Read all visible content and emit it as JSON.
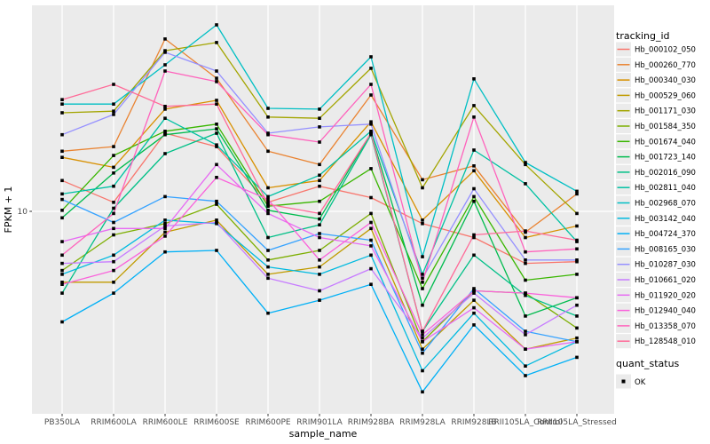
{
  "figure": {
    "background": "#FFFFFF",
    "panel_background": "#EBEBEB",
    "grid_color": "#FFFFFF",
    "marker_color": "#000000"
  },
  "axes": {
    "x_title": "sample_name",
    "y_title": "FPKM + 1",
    "y_tick_labels": [
      "10"
    ]
  },
  "legend": {
    "tracking_title": "tracking_id",
    "quant_title": "quant_status",
    "quant_items": [
      {
        "label": "OK",
        "marker": "black-square"
      }
    ]
  },
  "chart_data": {
    "type": "line",
    "title": "",
    "xlabel": "sample_name",
    "ylabel": "FPKM + 1",
    "y_scale": "log10",
    "ylim": [
      1.5,
      70
    ],
    "grid": "white-on-gray, vertical per category, horizontal at 10",
    "legend_position": "right",
    "point_marker": {
      "shape": "square",
      "color": "#000000",
      "legend": "quant_status = OK"
    },
    "categories": [
      "PB350LA",
      "RRIM600LA",
      "RRIM600LE",
      "RRIM600SE",
      "RRIM600PE",
      "RRIM901LA",
      "RRIM928BA",
      "RRIM928LA",
      "RRIM928LB",
      "RRII105LA_Control",
      "RRII105LA_Stressed"
    ],
    "series": [
      {
        "name": "Hb_000102_050",
        "color": "#F8766D",
        "values": [
          13.4,
          10.9,
          21.0,
          18.5,
          10.9,
          12.7,
          11.4,
          8.9,
          7.8,
          6.1,
          6.2
        ]
      },
      {
        "name": "Hb_000260_770",
        "color": "#EA8331",
        "values": [
          17.7,
          18.5,
          51.4,
          35.4,
          17.7,
          15.6,
          30.2,
          13.5,
          15.4,
          8.2,
          11.8
        ]
      },
      {
        "name": "Hb_000340_030",
        "color": "#D89000",
        "values": [
          16.7,
          15.2,
          26.4,
          28.7,
          12.5,
          13.4,
          23.4,
          9.2,
          14.7,
          7.8,
          8.7
        ]
      },
      {
        "name": "Hb_000529_060",
        "color": "#C09B00",
        "values": [
          5.1,
          5.1,
          8.2,
          9.2,
          5.5,
          5.9,
          8.5,
          2.7,
          4.3,
          2.7,
          3.0
        ]
      },
      {
        "name": "Hb_001171_030",
        "color": "#A3A500",
        "values": [
          25.5,
          25.9,
          46.0,
          49.7,
          24.5,
          24.2,
          38.9,
          12.5,
          27.3,
          15.6,
          9.8
        ]
      },
      {
        "name": "Hb_001584_350",
        "color": "#7CAE00",
        "values": [
          5.7,
          8.0,
          8.9,
          10.7,
          6.3,
          6.9,
          9.8,
          2.9,
          4.7,
          4.6,
          3.3
        ]
      },
      {
        "name": "Hb_001674_040",
        "color": "#39B600",
        "values": [
          10.1,
          17.0,
          21.4,
          22.9,
          10.5,
          11.0,
          15.0,
          4.8,
          11.5,
          5.2,
          5.5
        ]
      },
      {
        "name": "Hb_001723_140",
        "color": "#00BB4E",
        "values": [
          9.4,
          14.4,
          20.7,
          21.9,
          10.1,
          9.3,
          21.0,
          4.1,
          11.0,
          3.7,
          4.4
        ]
      },
      {
        "name": "Hb_002016_090",
        "color": "#00C087",
        "values": [
          4.6,
          10.3,
          17.3,
          21.0,
          7.8,
          8.8,
          20.7,
          3.2,
          6.6,
          4.5,
          3.7
        ]
      },
      {
        "name": "Hb_002811_040",
        "color": "#00C1A3",
        "values": [
          11.8,
          12.7,
          24.2,
          18.8,
          11.5,
          14.1,
          21.4,
          5.5,
          17.9,
          13.0,
          7.5
        ]
      },
      {
        "name": "Hb_002968_070",
        "color": "#00BFC4",
        "values": [
          27.7,
          27.7,
          40.2,
          58.8,
          26.6,
          26.4,
          43.4,
          6.5,
          35.2,
          15.9,
          12.1
        ]
      },
      {
        "name": "Hb_003142_040",
        "color": "#00BAE0",
        "values": [
          5.5,
          6.6,
          9.2,
          8.9,
          5.9,
          5.5,
          6.6,
          2.2,
          3.8,
          2.3,
          2.9
        ]
      },
      {
        "name": "Hb_004724_370",
        "color": "#00B0F6",
        "values": [
          3.5,
          4.6,
          6.8,
          6.9,
          3.8,
          4.3,
          5.0,
          1.8,
          3.4,
          2.1,
          2.5
        ]
      },
      {
        "name": "Hb_008165_030",
        "color": "#35A2FF",
        "values": [
          11.2,
          9.0,
          11.5,
          11.0,
          6.9,
          8.1,
          7.6,
          2.6,
          4.8,
          3.2,
          2.9
        ]
      },
      {
        "name": "Hb_010287_030",
        "color": "#9590FF",
        "values": [
          20.7,
          25.1,
          45.3,
          37.9,
          21.0,
          22.3,
          22.9,
          5.3,
          12.4,
          6.3,
          6.3
        ]
      },
      {
        "name": "Hb_010661_020",
        "color": "#C77CFF",
        "values": [
          6.1,
          6.2,
          8.7,
          9.0,
          5.3,
          4.7,
          5.8,
          3.0,
          4.6,
          3.1,
          4.1
        ]
      },
      {
        "name": "Hb_011920_020",
        "color": "#E76BF3",
        "values": [
          7.5,
          8.5,
          8.5,
          15.6,
          9.8,
          7.8,
          7.2,
          2.9,
          4.0,
          2.7,
          2.9
        ]
      },
      {
        "name": "Hb_012940_040",
        "color": "#FA62DB",
        "values": [
          5.0,
          5.7,
          7.9,
          13.8,
          11.2,
          6.3,
          9.0,
          3.1,
          4.7,
          4.6,
          4.4
        ]
      },
      {
        "name": "Hb_013358_070",
        "color": "#FF62BC",
        "values": [
          6.6,
          9.8,
          37.9,
          34.3,
          20.7,
          19.3,
          33.4,
          5.1,
          24.5,
          6.8,
          7.0
        ]
      },
      {
        "name": "Hb_128548_010",
        "color": "#FF6A98",
        "values": [
          28.9,
          33.4,
          27.1,
          27.7,
          10.7,
          9.8,
          21.0,
          3.2,
          8.0,
          8.3,
          7.6
        ]
      }
    ]
  }
}
